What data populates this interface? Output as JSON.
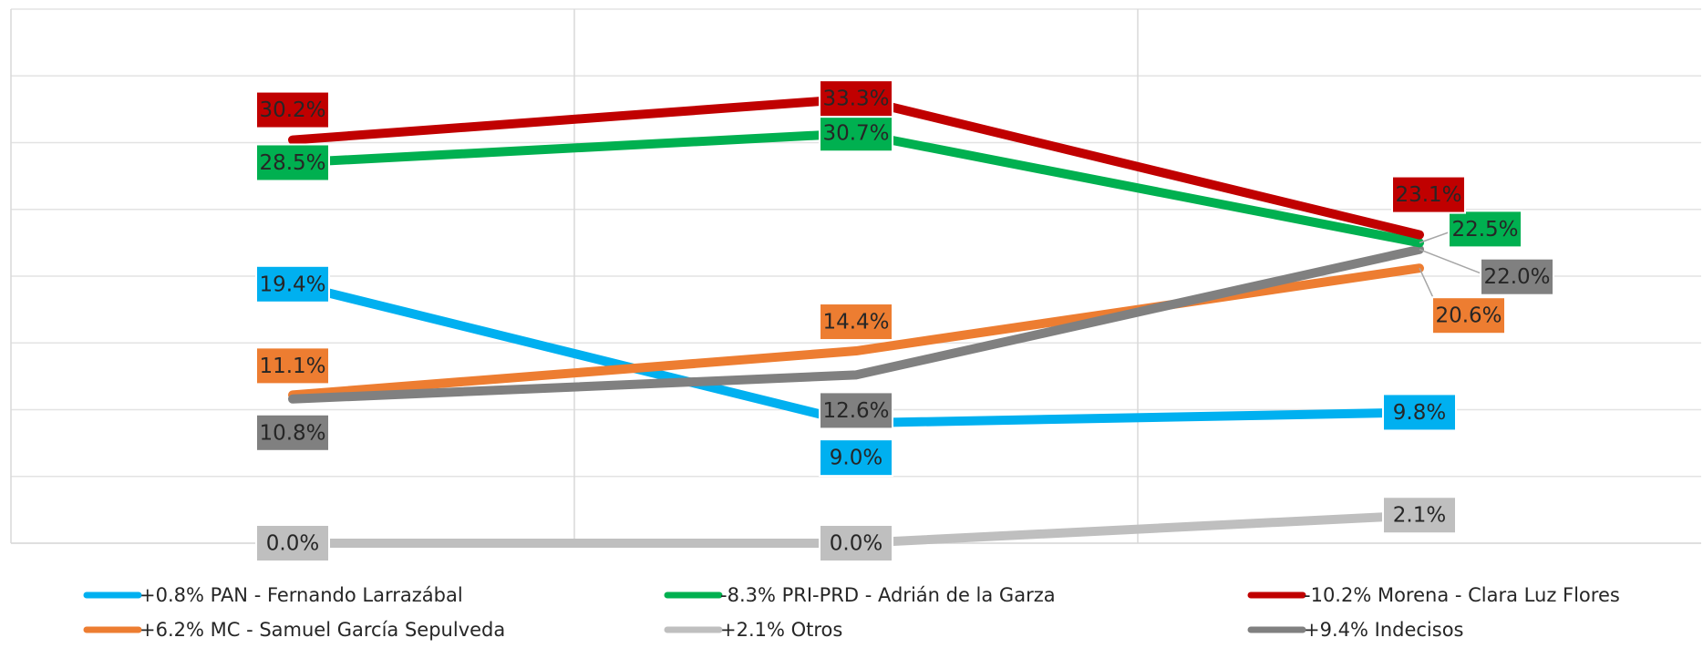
{
  "chart_data": {
    "type": "line",
    "categories": [
      null,
      null,
      null
    ],
    "ylim": [
      0,
      40
    ],
    "yticks": [
      0,
      5,
      10,
      15,
      20,
      25,
      30,
      35,
      40
    ],
    "grid": true,
    "series": [
      {
        "name": "+0.8% PAN - Fernando Larrazábal",
        "color": "#00b0f0",
        "values": [
          19.4,
          9.0,
          9.8
        ],
        "value_labels": [
          "19.4%",
          "9.0%",
          "9.8%"
        ]
      },
      {
        "name": "-8.3% PRI-PRD - Adrián de la Garza",
        "color": "#00b050",
        "values": [
          28.5,
          30.7,
          22.5
        ],
        "value_labels": [
          "28.5%",
          "30.7%",
          "22.5%"
        ]
      },
      {
        "name": "-10.2% Morena - Clara Luz Flores",
        "color": "#c00000",
        "values": [
          30.2,
          33.3,
          23.1
        ],
        "value_labels": [
          "30.2%",
          "33.3%",
          "23.1%"
        ]
      },
      {
        "name": "+6.2% MC - Samuel García Sepulveda",
        "color": "#ed7d31",
        "values": [
          11.1,
          14.4,
          20.6
        ],
        "value_labels": [
          "11.1%",
          "14.4%",
          "20.6%"
        ]
      },
      {
        "name": "+2.1% Otros",
        "color": "#bfbfbf",
        "values": [
          0.0,
          0.0,
          2.1
        ],
        "value_labels": [
          "0.0%",
          "0.0%",
          "2.1%"
        ]
      },
      {
        "name": "+9.4% Indecisos",
        "color": "#808080",
        "values": [
          10.8,
          12.6,
          22.0
        ],
        "value_labels": [
          "10.8%",
          "12.6%",
          "22.0%"
        ]
      }
    ]
  }
}
